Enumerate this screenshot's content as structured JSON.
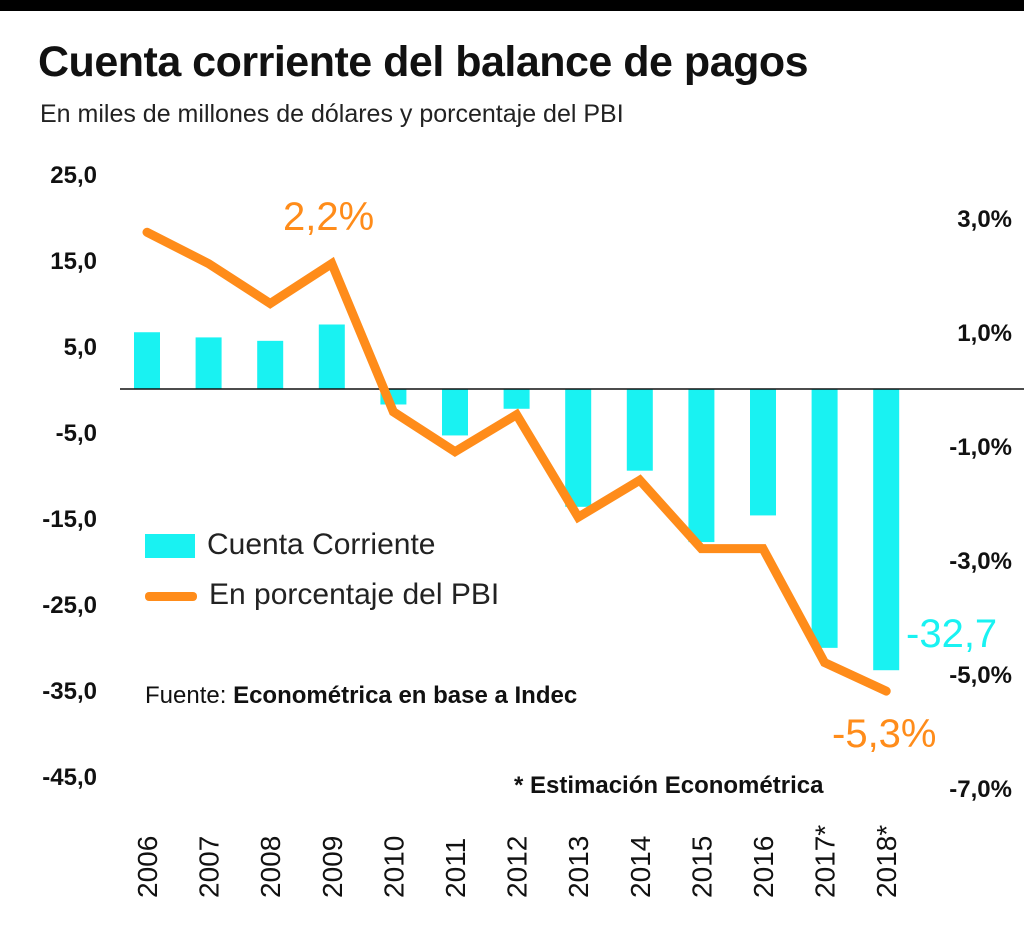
{
  "chart_data": {
    "type": "bar",
    "title": "Cuenta corriente del balance de pagos",
    "subtitle": "En miles de millones de dólares y porcentaje del PBI",
    "categories": [
      "2006",
      "2007",
      "2008",
      "2009",
      "2010",
      "2011",
      "2012",
      "2013",
      "2014",
      "2015",
      "2016",
      "2017*",
      "2018*"
    ],
    "series": [
      {
        "name": "Cuenta Corriente",
        "type": "bar",
        "axis": "left",
        "color": "#19f2f2",
        "values": [
          6.6,
          6.0,
          5.6,
          7.5,
          -1.8,
          -5.4,
          -2.3,
          -13.7,
          -9.5,
          -17.8,
          -14.7,
          -30.1,
          -32.7
        ]
      },
      {
        "name": "En porcentaje del PBI",
        "type": "line",
        "axis": "right",
        "color": "#ff8c1a",
        "values": [
          2.75,
          2.2,
          1.5,
          2.2,
          -0.4,
          -1.1,
          -0.45,
          -2.25,
          -1.6,
          -2.8,
          -2.8,
          -4.8,
          -5.3
        ]
      }
    ],
    "y_left": {
      "ticks": [
        "25,0",
        "15,0",
        "5,0",
        "-5,0",
        "-15,0",
        "-25,0",
        "-35,0",
        "-45,0"
      ],
      "values": [
        25,
        15,
        5,
        -5,
        -15,
        -25,
        -35,
        -45
      ]
    },
    "y_right": {
      "ticks": [
        "3,0%",
        "1,0%",
        "-1,0%",
        "-3,0%",
        "-5,0%",
        "-7,0%"
      ],
      "values": [
        3,
        1,
        -1,
        -3,
        -5,
        -7
      ]
    },
    "annotations": {
      "peak": {
        "text": "2,2%",
        "color": "#ff8c1a"
      },
      "last_bar": {
        "text": "-32,7",
        "color": "#19f2f2"
      },
      "last_line": {
        "text": "-5,3%",
        "color": "#ff8c1a"
      }
    },
    "legend_placement": "lower-left",
    "grid": false
  },
  "source": {
    "label": "Fuente:",
    "text": "Econométrica en base a Indec"
  },
  "note": "* Estimación Econométrica"
}
